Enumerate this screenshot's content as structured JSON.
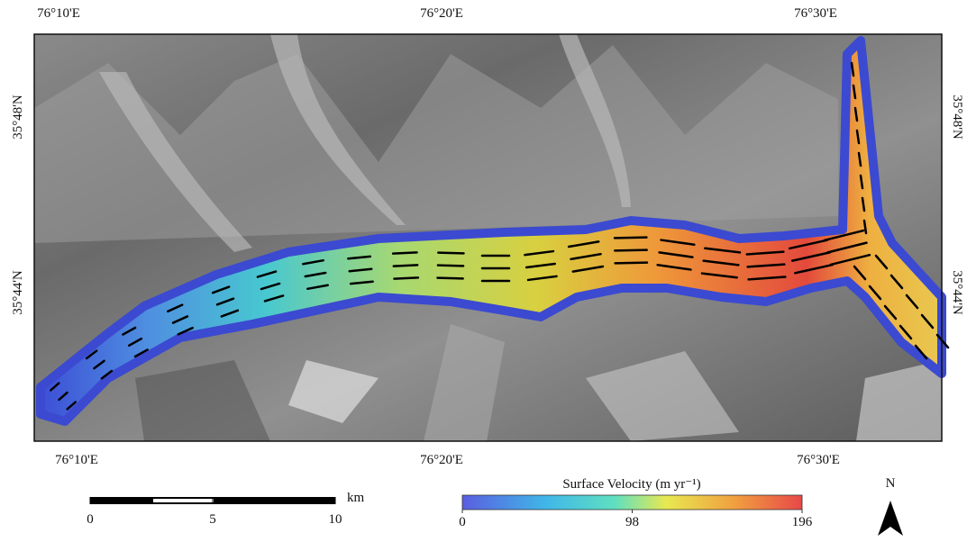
{
  "map": {
    "top_labels": [
      "76°10'E",
      "76°20'E",
      "76°30'E"
    ],
    "bottom_labels": [
      "76°10'E",
      "76°20'E",
      "76°30'E"
    ],
    "left_labels": [
      "35°48'N",
      "35°44'N"
    ],
    "right_labels": [
      "35°48'N",
      "35°44'N"
    ]
  },
  "legend": {
    "title": "Surface Velocity (m yr⁻¹)",
    "ticks": [
      0,
      98,
      196
    ]
  },
  "scale_bar": {
    "ticks": [
      0,
      5,
      10
    ],
    "unit": "km"
  },
  "north_arrow": {
    "label": "N"
  }
}
